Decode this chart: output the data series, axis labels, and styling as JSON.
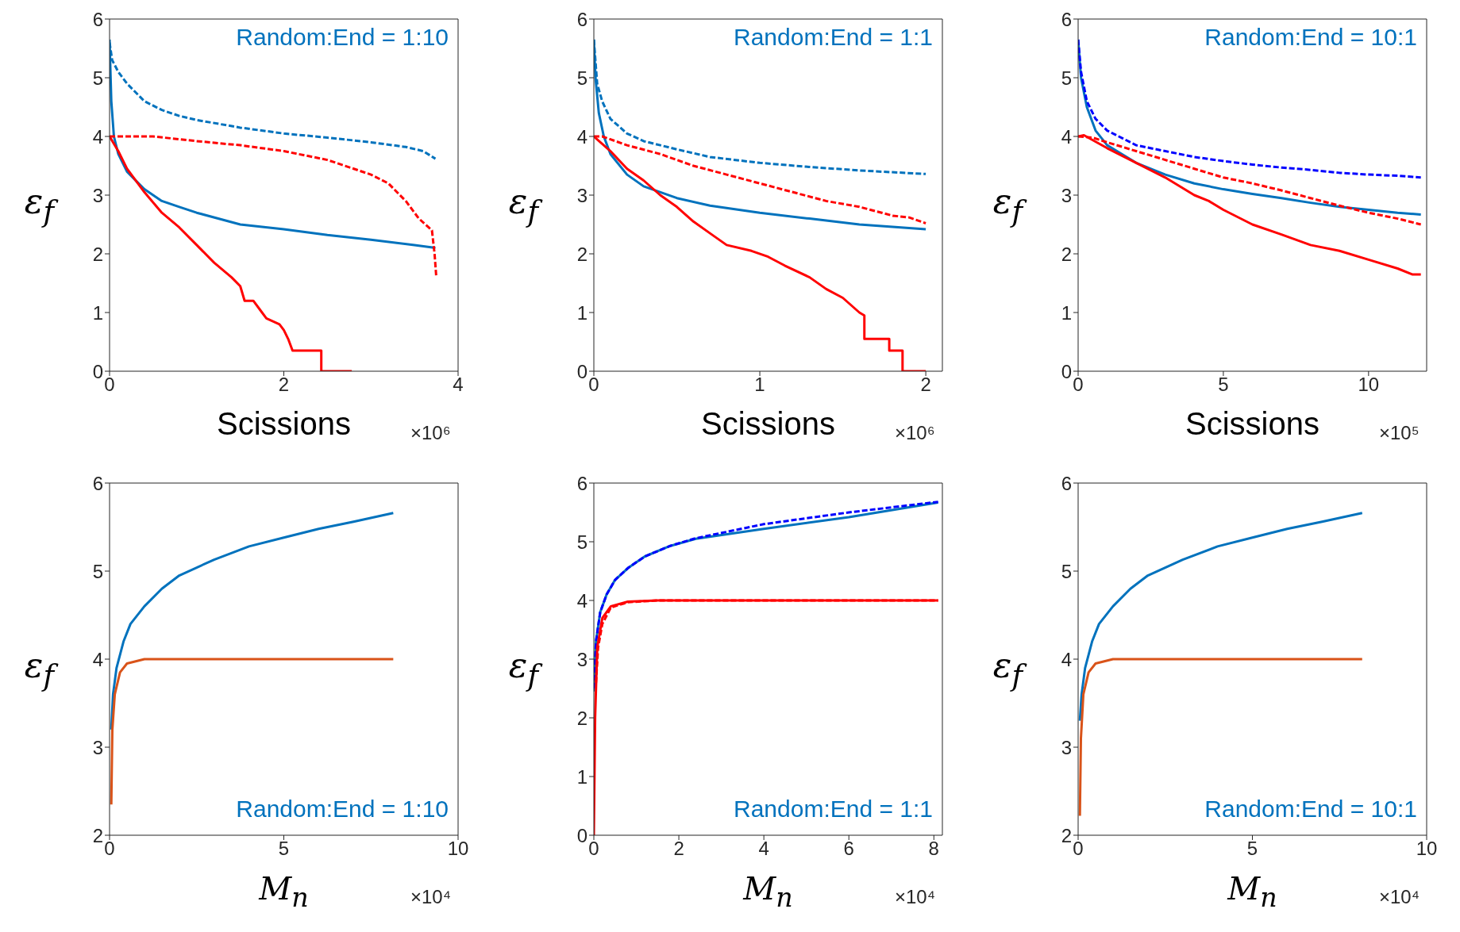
{
  "chart_data": [
    {
      "type": "line",
      "xlabel": "Scissions",
      "ylabel": "ε$_{f}$",
      "annotations": [
        "Random:End = 1:10",
        "×10⁶"
      ],
      "xlim": [
        0,
        4
      ],
      "xticks": [
        0,
        2,
        4
      ],
      "ylim": [
        0,
        6
      ],
      "yticks": [
        0,
        1,
        2,
        3,
        4,
        5,
        6
      ],
      "series": [
        {
          "color": "#0072bd",
          "line_style": "solid",
          "x": [
            0,
            0.02,
            0.05,
            0.1,
            0.2,
            0.4,
            0.6,
            0.8,
            1.0,
            1.5,
            2.0,
            2.5,
            3.0,
            3.5,
            3.74
          ],
          "values": [
            5.65,
            4.6,
            4.0,
            3.7,
            3.4,
            3.1,
            2.9,
            2.8,
            2.7,
            2.5,
            2.42,
            2.32,
            2.24,
            2.15,
            2.1
          ]
        },
        {
          "color": "#0072bd",
          "line_style": "dashed",
          "x": [
            0,
            0.03,
            0.1,
            0.2,
            0.4,
            0.6,
            0.8,
            1.0,
            1.5,
            2.0,
            2.5,
            3.0,
            3.4,
            3.6,
            3.74
          ],
          "values": [
            5.6,
            5.3,
            5.1,
            4.9,
            4.6,
            4.45,
            4.35,
            4.28,
            4.15,
            4.05,
            3.98,
            3.9,
            3.82,
            3.75,
            3.62
          ]
        },
        {
          "color": "#ff0000",
          "line_style": "dashed",
          "x": [
            0,
            0.5,
            1.0,
            1.5,
            2.0,
            2.5,
            3.0,
            3.2,
            3.4,
            3.55,
            3.7,
            3.73,
            3.75
          ],
          "values": [
            4.0,
            4.0,
            3.92,
            3.85,
            3.75,
            3.6,
            3.35,
            3.2,
            2.9,
            2.6,
            2.4,
            2.0,
            1.6
          ]
        },
        {
          "color": "#ff0000",
          "line_style": "solid",
          "x": [
            0,
            0.1,
            0.2,
            0.4,
            0.6,
            0.8,
            1.0,
            1.2,
            1.4,
            1.5,
            1.55,
            1.65,
            1.75,
            1.8,
            1.95,
            2.0,
            2.05,
            2.1,
            2.43,
            2.43,
            2.78
          ],
          "values": [
            4.0,
            3.75,
            3.45,
            3.05,
            2.7,
            2.45,
            2.15,
            1.85,
            1.6,
            1.45,
            1.2,
            1.2,
            1.0,
            0.9,
            0.8,
            0.7,
            0.55,
            0.35,
            0.35,
            0,
            0
          ]
        }
      ]
    },
    {
      "type": "line",
      "xlabel": "Scissions",
      "ylabel": "ε$_{f}$",
      "annotations": [
        "Random:End = 1:1",
        "×10⁶"
      ],
      "xlim": [
        0,
        2.1
      ],
      "xticks": [
        0,
        1,
        2
      ],
      "ylim": [
        0,
        6
      ],
      "yticks": [
        0,
        1,
        2,
        3,
        4,
        5,
        6
      ],
      "series": [
        {
          "color": "#0072bd",
          "line_style": "solid",
          "x": [
            0,
            0.01,
            0.03,
            0.06,
            0.1,
            0.2,
            0.3,
            0.5,
            0.7,
            1.0,
            1.3,
            1.6,
            2.0
          ],
          "values": [
            5.65,
            5.0,
            4.4,
            4.0,
            3.7,
            3.35,
            3.15,
            2.95,
            2.82,
            2.7,
            2.6,
            2.5,
            2.42
          ]
        },
        {
          "color": "#0072bd",
          "line_style": "dashed",
          "x": [
            0,
            0.02,
            0.05,
            0.1,
            0.2,
            0.3,
            0.5,
            0.7,
            1.0,
            1.3,
            1.6,
            2.0
          ],
          "values": [
            5.65,
            4.9,
            4.6,
            4.3,
            4.05,
            3.92,
            3.78,
            3.65,
            3.55,
            3.48,
            3.42,
            3.36
          ]
        },
        {
          "color": "#ff0000",
          "line_style": "dashed",
          "x": [
            0,
            0.05,
            0.2,
            0.4,
            0.6,
            0.8,
            1.0,
            1.2,
            1.4,
            1.6,
            1.8,
            1.9,
            2.0
          ],
          "values": [
            4.0,
            4.0,
            3.85,
            3.7,
            3.5,
            3.35,
            3.2,
            3.05,
            2.9,
            2.8,
            2.65,
            2.62,
            2.52
          ]
        },
        {
          "color": "#ff0000",
          "line_style": "solid",
          "x": [
            0,
            0.1,
            0.2,
            0.3,
            0.4,
            0.5,
            0.6,
            0.7,
            0.8,
            0.95,
            1.05,
            1.15,
            1.3,
            1.4,
            1.5,
            1.6,
            1.63,
            1.63,
            1.78,
            1.78,
            1.86,
            1.86,
            2.0
          ],
          "values": [
            4.0,
            3.75,
            3.45,
            3.25,
            3.0,
            2.8,
            2.55,
            2.35,
            2.15,
            2.05,
            1.95,
            1.8,
            1.6,
            1.4,
            1.25,
            1.0,
            0.95,
            0.55,
            0.55,
            0.35,
            0.35,
            0,
            0
          ]
        }
      ]
    },
    {
      "type": "line",
      "xlabel": "Scissions",
      "ylabel": "ε$_{f}$",
      "annotations": [
        "Random:End = 10:1",
        "×10⁵"
      ],
      "xlim": [
        0,
        12
      ],
      "xticks": [
        0,
        5,
        10
      ],
      "ylim": [
        0,
        6
      ],
      "yticks": [
        0,
        1,
        2,
        3,
        4,
        5,
        6
      ],
      "series": [
        {
          "color": "#0072bd",
          "line_style": "solid",
          "x": [
            0,
            0.1,
            0.3,
            0.6,
            1,
            2,
            3,
            4,
            5,
            6,
            7,
            8,
            9,
            10,
            11,
            11.8
          ],
          "values": [
            5.65,
            5.0,
            4.5,
            4.1,
            3.85,
            3.55,
            3.35,
            3.2,
            3.1,
            3.02,
            2.95,
            2.87,
            2.8,
            2.75,
            2.7,
            2.67
          ]
        },
        {
          "color": "#0000ff",
          "line_style": "dashed",
          "x": [
            0,
            0.1,
            0.3,
            0.6,
            1,
            2,
            3,
            4,
            5,
            6,
            7,
            8,
            9,
            10,
            11,
            11.8
          ],
          "values": [
            5.65,
            5.1,
            4.6,
            4.3,
            4.1,
            3.85,
            3.75,
            3.65,
            3.58,
            3.52,
            3.47,
            3.43,
            3.38,
            3.35,
            3.33,
            3.3
          ]
        },
        {
          "color": "#ff0000",
          "line_style": "dashed",
          "x": [
            0,
            0.5,
            1,
            2,
            3,
            4,
            5,
            6,
            7,
            8,
            9,
            10,
            11,
            11.8
          ],
          "values": [
            4.0,
            3.98,
            3.9,
            3.75,
            3.6,
            3.45,
            3.3,
            3.2,
            3.08,
            2.95,
            2.82,
            2.7,
            2.6,
            2.5
          ]
        },
        {
          "color": "#ff0000",
          "line_style": "solid",
          "x": [
            0,
            0.2,
            1,
            2,
            3,
            4,
            4.5,
            5,
            6,
            7,
            8,
            9,
            10,
            11,
            11.5,
            11.8
          ],
          "values": [
            4.0,
            4.02,
            3.8,
            3.55,
            3.3,
            3.0,
            2.9,
            2.75,
            2.5,
            2.33,
            2.15,
            2.05,
            1.9,
            1.75,
            1.65,
            1.65
          ]
        }
      ]
    },
    {
      "type": "line",
      "xlabel": "M$_{n}$",
      "ylabel": "ε$_{f}$",
      "annotations": [
        "Random:End = 1:10",
        "×10⁴"
      ],
      "xlim": [
        0,
        10
      ],
      "xticks": [
        0,
        5,
        10
      ],
      "ylim": [
        2,
        6
      ],
      "yticks": [
        2,
        3,
        4,
        5,
        6
      ],
      "series": [
        {
          "color": "#0072bd",
          "line_style": "solid",
          "x": [
            0.05,
            0.1,
            0.2,
            0.4,
            0.6,
            1.0,
            1.5,
            2,
            3,
            4,
            5,
            6,
            7,
            8.14
          ],
          "values": [
            3.2,
            3.6,
            3.9,
            4.2,
            4.4,
            4.6,
            4.8,
            4.95,
            5.13,
            5.28,
            5.38,
            5.48,
            5.56,
            5.66
          ]
        },
        {
          "color": "#d95319",
          "line_style": "solid",
          "x": [
            0.05,
            0.08,
            0.15,
            0.3,
            0.5,
            1.0,
            8.14
          ],
          "values": [
            2.35,
            3.2,
            3.6,
            3.85,
            3.95,
            4.0,
            4.0
          ]
        }
      ]
    },
    {
      "type": "line",
      "xlabel": "M$_{n}$",
      "ylabel": "ε$_{f}$",
      "annotations": [
        "Random:End = 1:1",
        "×10⁴"
      ],
      "xlim": [
        0,
        8.2
      ],
      "xticks": [
        0,
        2,
        4,
        6,
        8
      ],
      "ylim": [
        0,
        6
      ],
      "yticks": [
        0,
        1,
        2,
        3,
        4,
        5,
        6
      ],
      "series": [
        {
          "color": "#0072bd",
          "line_style": "solid",
          "x": [
            0,
            0.05,
            0.15,
            0.3,
            0.5,
            0.8,
            1.2,
            1.8,
            2.4,
            4,
            6,
            8.1
          ],
          "values": [
            2.45,
            3.3,
            3.8,
            4.1,
            4.35,
            4.55,
            4.75,
            4.93,
            5.05,
            5.22,
            5.42,
            5.67
          ]
        },
        {
          "color": "#0000ff",
          "line_style": "dashed",
          "x": [
            0,
            0.05,
            0.15,
            0.3,
            0.5,
            0.8,
            1.2,
            1.8,
            2.4,
            4,
            6,
            8.1
          ],
          "values": [
            2.5,
            3.3,
            3.8,
            4.1,
            4.35,
            4.55,
            4.75,
            4.93,
            5.06,
            5.3,
            5.5,
            5.68
          ]
        },
        {
          "color": "#ff0000",
          "line_style": "dashed",
          "x": [
            0.05,
            0.1,
            0.2,
            0.4,
            0.8,
            1.5,
            8.1
          ],
          "values": [
            2.6,
            3.2,
            3.6,
            3.88,
            3.97,
            4.0,
            4.0
          ]
        },
        {
          "color": "#ff0000",
          "line_style": "solid",
          "x": [
            0,
            0.03,
            0.08,
            0.2,
            0.4,
            0.8,
            1.5,
            8.1
          ],
          "values": [
            0,
            2.0,
            3.2,
            3.7,
            3.9,
            3.98,
            4.0,
            4.0
          ]
        }
      ]
    },
    {
      "type": "line",
      "xlabel": "M$_{n}$",
      "ylabel": "ε$_{f}$",
      "annotations": [
        "Random:End = 10:1",
        "×10⁴"
      ],
      "xlim": [
        0,
        10
      ],
      "xticks": [
        0,
        5,
        10
      ],
      "ylim": [
        2,
        6
      ],
      "yticks": [
        2,
        3,
        4,
        5,
        6
      ],
      "series": [
        {
          "color": "#0072bd",
          "line_style": "solid",
          "x": [
            0.05,
            0.1,
            0.2,
            0.4,
            0.6,
            1.0,
            1.5,
            2,
            3,
            4,
            5,
            6,
            7,
            8.15
          ],
          "values": [
            3.3,
            3.6,
            3.9,
            4.2,
            4.4,
            4.6,
            4.8,
            4.95,
            5.13,
            5.28,
            5.38,
            5.48,
            5.56,
            5.66
          ]
        },
        {
          "color": "#d95319",
          "line_style": "solid",
          "x": [
            0.05,
            0.08,
            0.15,
            0.3,
            0.5,
            1.0,
            8.15
          ],
          "values": [
            2.22,
            3.1,
            3.6,
            3.85,
            3.95,
            4.0,
            4.0
          ]
        }
      ]
    }
  ]
}
